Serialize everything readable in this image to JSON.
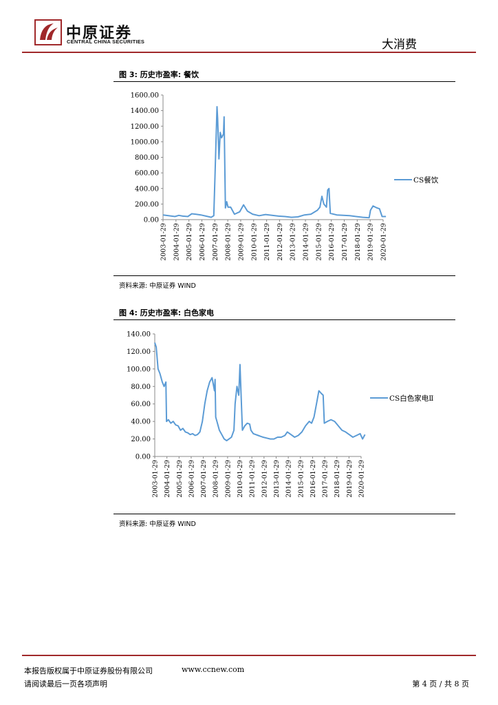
{
  "header": {
    "brand_cn": "中原证券",
    "brand_en": "CENTRAL CHINA SECURITIES",
    "sector": "大消费",
    "accent_color": "#a0282a",
    "logo_icon": "central-china-securities-logo"
  },
  "figures": [
    {
      "title": "图 3:  历史市盈率:  餐饮",
      "source": "资料来源:  中原证券  WIND"
    },
    {
      "title": "图 4:  历史市盈率:  白色家电",
      "source": "资料来源:  中原证券  WIND"
    }
  ],
  "chart_data": [
    {
      "type": "line",
      "title": "",
      "x_labels": [
        "2003-01-29",
        "2004-01-29",
        "2005-01-29",
        "2006-01-29",
        "2007-01-29",
        "2008-01-29",
        "2009-01-29",
        "2010-01-29",
        "2011-01-29",
        "2012-01-29",
        "2013-01-29",
        "2014-01-29",
        "2015-01-29",
        "2016-01-29",
        "2017-01-29",
        "2018-01-29",
        "2019-01-29",
        "2020-01-29"
      ],
      "y_ticks": [
        "1600.00",
        "1400.00",
        "1200.00",
        "1000.00",
        "800.00",
        "600.00",
        "400.00",
        "200.00",
        "0.00"
      ],
      "ylim": [
        0,
        1600
      ],
      "legend_position": "right",
      "series": [
        {
          "name": "CS餐饮",
          "color": "#5b9bd5",
          "x": [
            2003.08,
            2003.5,
            2004.0,
            2004.3,
            2004.6,
            2005.0,
            2005.3,
            2005.6,
            2006.0,
            2006.4,
            2006.8,
            2007.0,
            2007.1,
            2007.25,
            2007.3,
            2007.4,
            2007.5,
            2007.6,
            2007.75,
            2007.8,
            2007.9,
            2008.0,
            2008.1,
            2008.3,
            2008.6,
            2009.0,
            2009.3,
            2009.6,
            2010.0,
            2010.5,
            2011.0,
            2011.5,
            2012.0,
            2012.5,
            2013.0,
            2013.5,
            2014.0,
            2014.5,
            2015.0,
            2015.2,
            2015.35,
            2015.5,
            2015.7,
            2015.8,
            2015.9,
            2016.0,
            2016.5,
            2017.0,
            2017.5,
            2018.0,
            2018.5,
            2019.0,
            2019.1,
            2019.3,
            2019.6,
            2019.8,
            2020.0,
            2020.3
          ],
          "y": [
            60,
            50,
            40,
            55,
            45,
            40,
            75,
            70,
            60,
            45,
            30,
            50,
            600,
            1450,
            1300,
            780,
            1120,
            1050,
            1100,
            1320,
            150,
            230,
            160,
            160,
            70,
            100,
            190,
            110,
            70,
            50,
            65,
            55,
            45,
            40,
            30,
            35,
            60,
            70,
            120,
            160,
            300,
            200,
            160,
            380,
            400,
            80,
            60,
            55,
            50,
            40,
            30,
            25,
            120,
            175,
            150,
            140,
            40,
            40
          ]
        }
      ]
    },
    {
      "type": "line",
      "title": "",
      "x_labels": [
        "2003-01-29",
        "2004-01-29",
        "2005-01-29",
        "2006-01-29",
        "2007-01-29",
        "2008-01-29",
        "2009-01-29",
        "2010-01-29",
        "2011-01-29",
        "2012-01-29",
        "2013-01-29",
        "2014-01-29",
        "2015-01-29",
        "2016-01-29",
        "2017-01-29",
        "2018-01-29",
        "2019-01-29",
        "2020-01-29"
      ],
      "y_ticks": [
        "140.00",
        "120.00",
        "100.00",
        "80.00",
        "60.00",
        "40.00",
        "20.00",
        "0.00"
      ],
      "ylim": [
        0,
        140
      ],
      "legend_position": "right",
      "series": [
        {
          "name": "CS白色家电Ⅱ",
          "color": "#5b9bd5",
          "x": [
            2003.08,
            2003.2,
            2003.35,
            2003.5,
            2003.7,
            2003.85,
            2004.0,
            2004.05,
            2004.2,
            2004.4,
            2004.6,
            2004.8,
            2005.0,
            2005.2,
            2005.4,
            2005.6,
            2005.8,
            2006.0,
            2006.2,
            2006.4,
            2006.6,
            2006.8,
            2007.0,
            2007.2,
            2007.4,
            2007.6,
            2007.8,
            2008.0,
            2008.05,
            2008.1,
            2008.2,
            2008.4,
            2008.6,
            2008.8,
            2009.0,
            2009.2,
            2009.4,
            2009.6,
            2009.7,
            2009.85,
            2010.0,
            2010.1,
            2010.3,
            2010.5,
            2010.7,
            2010.9,
            2011.0,
            2011.2,
            2011.4,
            2011.6,
            2011.8,
            2012.0,
            2012.3,
            2012.6,
            2012.9,
            2013.2,
            2013.5,
            2013.8,
            2014.0,
            2014.3,
            2014.6,
            2014.9,
            2015.2,
            2015.5,
            2015.8,
            2016.0,
            2016.2,
            2016.4,
            2016.6,
            2016.8,
            2016.95,
            2017.05,
            2017.3,
            2017.6,
            2017.9,
            2018.2,
            2018.5,
            2018.8,
            2019.1,
            2019.4,
            2019.7,
            2020.0,
            2020.2,
            2020.4
          ],
          "y": [
            130,
            125,
            100,
            95,
            85,
            80,
            85,
            40,
            42,
            38,
            40,
            36,
            35,
            30,
            32,
            28,
            27,
            25,
            26,
            24,
            25,
            28,
            40,
            60,
            75,
            85,
            90,
            75,
            88,
            45,
            40,
            30,
            25,
            20,
            18,
            20,
            22,
            30,
            60,
            80,
            70,
            105,
            30,
            35,
            38,
            37,
            30,
            26,
            25,
            24,
            23,
            22,
            21,
            20,
            20,
            22,
            22,
            24,
            28,
            25,
            22,
            24,
            28,
            35,
            40,
            38,
            45,
            60,
            75,
            72,
            70,
            38,
            40,
            42,
            40,
            35,
            30,
            28,
            25,
            22,
            24,
            26,
            20,
            25
          ]
        }
      ]
    }
  ],
  "footer": {
    "copyright": "本报告版权属于中原证券股份有限公司",
    "website": "www.ccnew.com",
    "disclaimer": "请阅读最后一页各项声明",
    "page_indicator": "第 4 页  /  共 8 页"
  }
}
